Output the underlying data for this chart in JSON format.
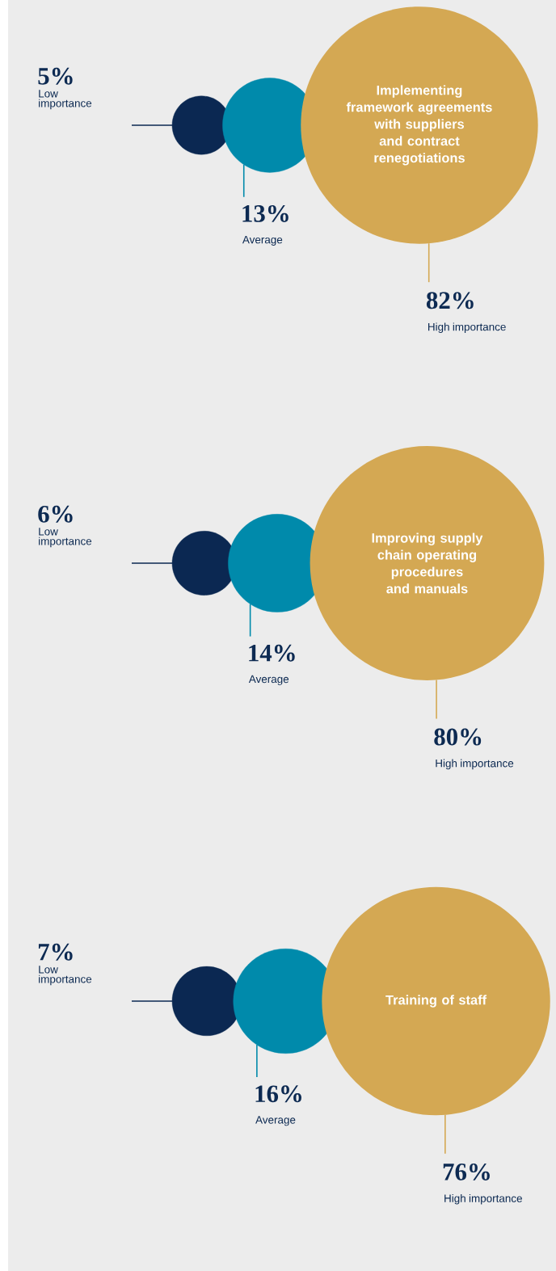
{
  "chart_data": [
    {
      "type": "other",
      "title": "Implementing framework agreements with suppliers and contract renegotiations",
      "categories": [
        "Low importance",
        "Average",
        "High importance"
      ],
      "values": [
        5,
        13,
        82
      ],
      "value_labels": [
        "5%",
        "13%",
        "82%"
      ],
      "colors": [
        "#0b2852",
        "#008aab",
        "#d4a853"
      ]
    },
    {
      "type": "other",
      "title": "Improving supply chain operating procedures and manuals",
      "categories": [
        "Low importance",
        "Average",
        "High importance"
      ],
      "values": [
        6,
        14,
        80
      ],
      "value_labels": [
        "6%",
        "14%",
        "80%"
      ],
      "colors": [
        "#0b2852",
        "#008aab",
        "#d4a853"
      ]
    },
    {
      "type": "other",
      "title": "Training of staff",
      "categories": [
        "Low importance",
        "Average",
        "High importance"
      ],
      "values": [
        7,
        16,
        76
      ],
      "value_labels": [
        "7%",
        "16%",
        "76%"
      ],
      "colors": [
        "#0b2852",
        "#008aab",
        "#d4a853"
      ]
    }
  ]
}
